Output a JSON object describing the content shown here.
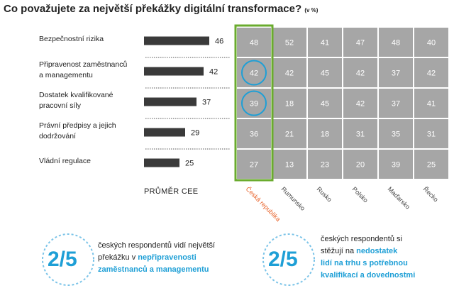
{
  "title": "Co považujete za největší překážky digitální transformace?",
  "title_unit": "(v %)",
  "avg_label": "PRŮMĚR CEE",
  "chart_data": {
    "type": "table",
    "title": "Co považujete za největší překážky digitální transformace?",
    "unit": "%",
    "categories": [
      "Bezpečnostní rizika",
      "Připravenost zaměstnanců a managementu",
      "Dostatek kvalifikované pracovní síly",
      "Právní předpisy a jejich dodržování",
      "Vládní regulace"
    ],
    "category_lines": [
      [
        "Bezpečnostní rizika"
      ],
      [
        "Připravenost zaměstnanců",
        "a managementu"
      ],
      [
        "Dostatek kvalifikované",
        "pracovní síly"
      ],
      [
        "Právní předpisy a jejich",
        "dodržování"
      ],
      [
        "Vládní regulace"
      ]
    ],
    "average_label": "PRŮMĚR CEE",
    "average_values": [
      46,
      42,
      37,
      29,
      25
    ],
    "countries": [
      "Česká republika",
      "Rumunsko",
      "Rusko",
      "Polsko",
      "Maďarsko",
      "Řecko"
    ],
    "highlight_country": "Česká republika",
    "highlight_color": "#e8632b",
    "highlight_border_color": "#6aab2e",
    "circled_cells": [
      [
        1,
        0
      ],
      [
        2,
        0
      ]
    ],
    "values": [
      [
        48,
        52,
        41,
        47,
        48,
        40
      ],
      [
        42,
        42,
        45,
        42,
        37,
        42
      ],
      [
        39,
        18,
        45,
        42,
        37,
        41
      ],
      [
        36,
        21,
        18,
        31,
        35,
        31
      ],
      [
        27,
        13,
        23,
        20,
        39,
        25
      ]
    ],
    "cell_color": "#a6a6a6",
    "bar_color": "#3a3a3a"
  },
  "stats": [
    {
      "big": "2/5",
      "line1": "českých respondentů vidí největší",
      "line2_pre": "překážku v ",
      "line2_hl": "nepřipravenosti",
      "line3_hl": "zaměstnanců a managementu"
    },
    {
      "big": "2/5",
      "line1": "českých respondentů si",
      "line2_pre": "stěžují na ",
      "line2_hl": "nedostatek",
      "line3_hl": "lidí na trhu s potřebnou",
      "line4_hl": "kvalifikací a dovednostmi"
    }
  ],
  "accent_color": "#1e9fd6"
}
